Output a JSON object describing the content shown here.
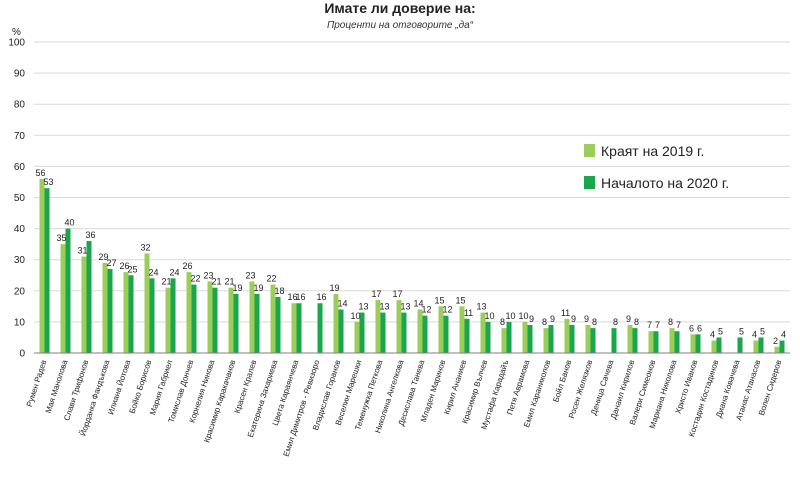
{
  "chart_data": {
    "type": "bar",
    "title": "Имате ли доверие на:",
    "subtitle": "Проценти на отговорите „да“",
    "ylabel": "%",
    "ylim": [
      0,
      100
    ],
    "yticks": [
      0,
      10,
      20,
      30,
      40,
      50,
      60,
      70,
      80,
      90,
      100
    ],
    "grid": true,
    "legend_position": "right",
    "colors": {
      "series1": "#9acd5a",
      "series2": "#1aa64a",
      "grid": "#d9d9d9",
      "axis": "#808080"
    },
    "categories": [
      "Румен Радев",
      "Мая Манолова",
      "Слави Трифонов",
      "Йорданка Фандъкова",
      "Илиана Йотова",
      "Бойко Борисов",
      "Мария Габриел",
      "Томислав Дончев",
      "Корнелия Нинова",
      "Красимир Каракачанов",
      "Красен Кралев",
      "Екатерина Захариева",
      "Цвета Караянчева",
      "Емил Димитров - Ревизоро",
      "Владислав Горанов",
      "Веселин Марешки",
      "Теменужка Петкова",
      "Николина Ангелкова",
      "Десислава Танева",
      "Младен Маринов",
      "Кирил Ананиев",
      "Красимир Вълчев",
      "Мустафа Карадайъ",
      "Петя Аврамова",
      "Емил Караниколов",
      "Бойл Банов",
      "Росен Желязков",
      "Деница Сачева",
      "Данаил Кирилов",
      "Валери Симеонов",
      "Мариана Николова",
      "Христо Иванов",
      "Костадин Костадинов",
      "Диана Ковачева",
      "Атанас Атанасов",
      "Волен Сидеров"
    ],
    "series": [
      {
        "name": "Краят на 2019 г.",
        "values": [
          56,
          35,
          31,
          29,
          26,
          32,
          21,
          26,
          23,
          21,
          23,
          22,
          16,
          null,
          19,
          10,
          17,
          17,
          14,
          15,
          15,
          13,
          8,
          10,
          8,
          11,
          9,
          null,
          9,
          7,
          8,
          6,
          4,
          null,
          4,
          2
        ]
      },
      {
        "name": "Началото на 2020 г.",
        "values": [
          53,
          40,
          36,
          27,
          25,
          24,
          24,
          22,
          21,
          19,
          19,
          18,
          16,
          16,
          14,
          13,
          13,
          13,
          12,
          12,
          11,
          10,
          10,
          9,
          9,
          9,
          8,
          8,
          8,
          7,
          7,
          6,
          5,
          5,
          5,
          4
        ]
      }
    ]
  }
}
